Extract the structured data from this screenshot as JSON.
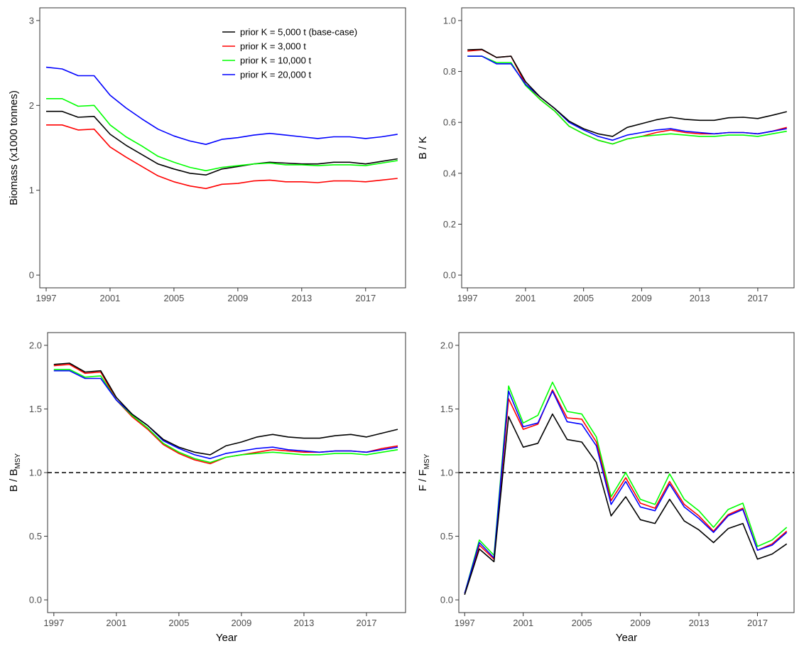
{
  "chart_data": [
    {
      "type": "line",
      "ylabel": "Biomass (x1000 tonnes)",
      "xlabel": "",
      "xlim": [
        1996.6,
        2019.5
      ],
      "ylim": [
        -0.15,
        3.15
      ],
      "xticks": [
        1997,
        2001,
        2005,
        2009,
        2013,
        2017
      ],
      "yticks": [
        0,
        1,
        2,
        3
      ],
      "ytick_labels": [
        "0",
        "1",
        "2",
        "3"
      ],
      "x": [
        1997,
        1998,
        1999,
        2000,
        2001,
        2002,
        2003,
        2004,
        2005,
        2006,
        2007,
        2008,
        2009,
        2010,
        2011,
        2012,
        2013,
        2014,
        2015,
        2016,
        2017,
        2018,
        2019
      ],
      "legend": {
        "position": "top-right"
      },
      "series": [
        {
          "name": "prior K = 5,000 t (base-case)",
          "color": "#000000",
          "values": [
            1.93,
            1.93,
            1.86,
            1.87,
            1.66,
            1.53,
            1.42,
            1.31,
            1.25,
            1.2,
            1.18,
            1.25,
            1.28,
            1.31,
            1.33,
            1.32,
            1.31,
            1.31,
            1.33,
            1.33,
            1.31,
            1.34,
            1.37
          ]
        },
        {
          "name": "prior K = 3,000 t",
          "color": "#ff0000",
          "values": [
            1.77,
            1.77,
            1.71,
            1.72,
            1.51,
            1.39,
            1.28,
            1.17,
            1.1,
            1.05,
            1.02,
            1.07,
            1.08,
            1.11,
            1.12,
            1.1,
            1.1,
            1.09,
            1.11,
            1.11,
            1.1,
            1.12,
            1.14
          ]
        },
        {
          "name": "prior K = 10,000 t",
          "color": "#00ff00",
          "values": [
            2.08,
            2.08,
            1.99,
            2.0,
            1.77,
            1.63,
            1.52,
            1.4,
            1.33,
            1.27,
            1.23,
            1.27,
            1.29,
            1.31,
            1.32,
            1.3,
            1.3,
            1.29,
            1.3,
            1.3,
            1.29,
            1.32,
            1.35
          ]
        },
        {
          "name": "prior K = 20,000 t",
          "color": "#0000ff",
          "values": [
            2.45,
            2.43,
            2.35,
            2.35,
            2.12,
            1.97,
            1.84,
            1.72,
            1.64,
            1.58,
            1.54,
            1.6,
            1.62,
            1.65,
            1.67,
            1.65,
            1.63,
            1.61,
            1.63,
            1.63,
            1.61,
            1.63,
            1.66
          ]
        }
      ]
    },
    {
      "type": "line",
      "ylabel": "B / K",
      "xlabel": "",
      "xlim": [
        1996.6,
        2019.5
      ],
      "ylim": [
        -0.05,
        1.05
      ],
      "xticks": [
        1997,
        2001,
        2005,
        2009,
        2013,
        2017
      ],
      "yticks": [
        0,
        0.2,
        0.4,
        0.6,
        0.8,
        1.0
      ],
      "ytick_labels": [
        "0.0",
        "0.2",
        "0.4",
        "0.6",
        "0.8",
        "1.0"
      ],
      "x": [
        1997,
        1998,
        1999,
        2000,
        2001,
        2002,
        2003,
        2004,
        2005,
        2006,
        2007,
        2008,
        2009,
        2010,
        2011,
        2012,
        2013,
        2014,
        2015,
        2016,
        2017,
        2018,
        2019
      ],
      "series": [
        {
          "name": "prior K = 3,000 t",
          "color": "#ff0000",
          "values": [
            0.88,
            0.885,
            0.855,
            0.86,
            0.75,
            0.69,
            0.645,
            0.585,
            0.555,
            0.53,
            0.515,
            0.535,
            0.545,
            0.56,
            0.57,
            0.56,
            0.555,
            0.555,
            0.56,
            0.56,
            0.555,
            0.565,
            0.58
          ]
        },
        {
          "name": "prior K = 10,000 t",
          "color": "#00ff00",
          "values": [
            0.86,
            0.86,
            0.835,
            0.835,
            0.745,
            0.69,
            0.645,
            0.585,
            0.555,
            0.53,
            0.515,
            0.535,
            0.545,
            0.55,
            0.555,
            0.55,
            0.545,
            0.545,
            0.55,
            0.55,
            0.545,
            0.555,
            0.565
          ]
        },
        {
          "name": "prior K = 20,000 t",
          "color": "#0000ff",
          "values": [
            0.86,
            0.86,
            0.83,
            0.83,
            0.75,
            0.7,
            0.655,
            0.6,
            0.57,
            0.545,
            0.53,
            0.55,
            0.56,
            0.57,
            0.575,
            0.565,
            0.56,
            0.555,
            0.56,
            0.56,
            0.555,
            0.565,
            0.575
          ]
        },
        {
          "name": "prior K = 5,000 t (base-case)",
          "color": "#000000",
          "values": [
            0.885,
            0.887,
            0.855,
            0.86,
            0.76,
            0.7,
            0.655,
            0.605,
            0.575,
            0.555,
            0.545,
            0.58,
            0.595,
            0.61,
            0.62,
            0.612,
            0.608,
            0.608,
            0.618,
            0.62,
            0.615,
            0.628,
            0.642
          ]
        }
      ]
    },
    {
      "type": "line",
      "ylabel": "B / B",
      "ylabel_sub": "MSY",
      "xlabel": "Year",
      "xlim": [
        1996.6,
        2019.5
      ],
      "ylim": [
        -0.1,
        2.1
      ],
      "xticks": [
        1997,
        2001,
        2005,
        2009,
        2013,
        2017
      ],
      "yticks": [
        0,
        0.5,
        1.0,
        1.5,
        2.0
      ],
      "ytick_labels": [
        "0.0",
        "0.5",
        "1.0",
        "1.5",
        "2.0"
      ],
      "hline": 1.0,
      "x": [
        1997,
        1998,
        1999,
        2000,
        2001,
        2002,
        2003,
        2004,
        2005,
        2006,
        2007,
        2008,
        2009,
        2010,
        2011,
        2012,
        2013,
        2014,
        2015,
        2016,
        2017,
        2018,
        2019
      ],
      "series": [
        {
          "name": "prior K = 3,000 t",
          "color": "#ff0000",
          "values": [
            1.84,
            1.85,
            1.78,
            1.79,
            1.57,
            1.44,
            1.34,
            1.22,
            1.15,
            1.1,
            1.07,
            1.12,
            1.14,
            1.16,
            1.18,
            1.17,
            1.16,
            1.16,
            1.17,
            1.17,
            1.16,
            1.19,
            1.21
          ]
        },
        {
          "name": "prior K = 10,000 t",
          "color": "#00ff00",
          "values": [
            1.81,
            1.81,
            1.75,
            1.76,
            1.57,
            1.45,
            1.35,
            1.23,
            1.16,
            1.11,
            1.08,
            1.12,
            1.14,
            1.15,
            1.16,
            1.15,
            1.14,
            1.14,
            1.15,
            1.15,
            1.14,
            1.16,
            1.18
          ]
        },
        {
          "name": "prior K = 20,000 t",
          "color": "#0000ff",
          "values": [
            1.8,
            1.8,
            1.74,
            1.74,
            1.57,
            1.46,
            1.37,
            1.25,
            1.19,
            1.14,
            1.11,
            1.15,
            1.17,
            1.19,
            1.2,
            1.18,
            1.17,
            1.16,
            1.17,
            1.17,
            1.16,
            1.18,
            1.2
          ]
        },
        {
          "name": "prior K = 5,000 t (base-case)",
          "color": "#000000",
          "values": [
            1.85,
            1.86,
            1.79,
            1.8,
            1.59,
            1.46,
            1.37,
            1.26,
            1.2,
            1.16,
            1.14,
            1.21,
            1.24,
            1.28,
            1.3,
            1.28,
            1.27,
            1.27,
            1.29,
            1.3,
            1.28,
            1.31,
            1.34
          ]
        }
      ]
    },
    {
      "type": "line",
      "ylabel": "F / F",
      "ylabel_sub": "MSY",
      "xlabel": "Year",
      "xlim": [
        1996.6,
        2019.5
      ],
      "ylim": [
        -0.1,
        2.1
      ],
      "xticks": [
        1997,
        2001,
        2005,
        2009,
        2013,
        2017
      ],
      "yticks": [
        0,
        0.5,
        1.0,
        1.5,
        2.0
      ],
      "ytick_labels": [
        "0.0",
        "0.5",
        "1.0",
        "1.5",
        "2.0"
      ],
      "hline": 1.0,
      "x": [
        1997,
        1998,
        1999,
        2000,
        2001,
        2002,
        2003,
        2004,
        2005,
        2006,
        2007,
        2008,
        2009,
        2010,
        2011,
        2012,
        2013,
        2014,
        2015,
        2016,
        2017,
        2018,
        2019
      ],
      "series": [
        {
          "name": "prior K = 10,000 t",
          "color": "#00ff00",
          "values": [
            0.05,
            0.47,
            0.35,
            1.68,
            1.39,
            1.45,
            1.71,
            1.48,
            1.46,
            1.28,
            0.81,
            1.0,
            0.79,
            0.75,
            0.99,
            0.79,
            0.7,
            0.57,
            0.71,
            0.76,
            0.42,
            0.47,
            0.57
          ]
        },
        {
          "name": "prior K = 3,000 t",
          "color": "#ff0000",
          "values": [
            0.05,
            0.43,
            0.32,
            1.58,
            1.34,
            1.38,
            1.65,
            1.43,
            1.42,
            1.24,
            0.78,
            0.96,
            0.76,
            0.72,
            0.93,
            0.75,
            0.66,
            0.54,
            0.67,
            0.72,
            0.39,
            0.44,
            0.54
          ]
        },
        {
          "name": "prior K = 20,000 t",
          "color": "#0000ff",
          "values": [
            0.05,
            0.45,
            0.33,
            1.64,
            1.36,
            1.39,
            1.64,
            1.4,
            1.38,
            1.21,
            0.75,
            0.93,
            0.73,
            0.7,
            0.91,
            0.73,
            0.64,
            0.53,
            0.66,
            0.71,
            0.39,
            0.43,
            0.53
          ]
        },
        {
          "name": "prior K = 5,000 t (base-case)",
          "color": "#000000",
          "values": [
            0.04,
            0.4,
            0.3,
            1.44,
            1.2,
            1.23,
            1.46,
            1.26,
            1.24,
            1.08,
            0.66,
            0.81,
            0.63,
            0.6,
            0.79,
            0.62,
            0.55,
            0.45,
            0.56,
            0.6,
            0.32,
            0.36,
            0.44
          ]
        }
      ]
    }
  ]
}
